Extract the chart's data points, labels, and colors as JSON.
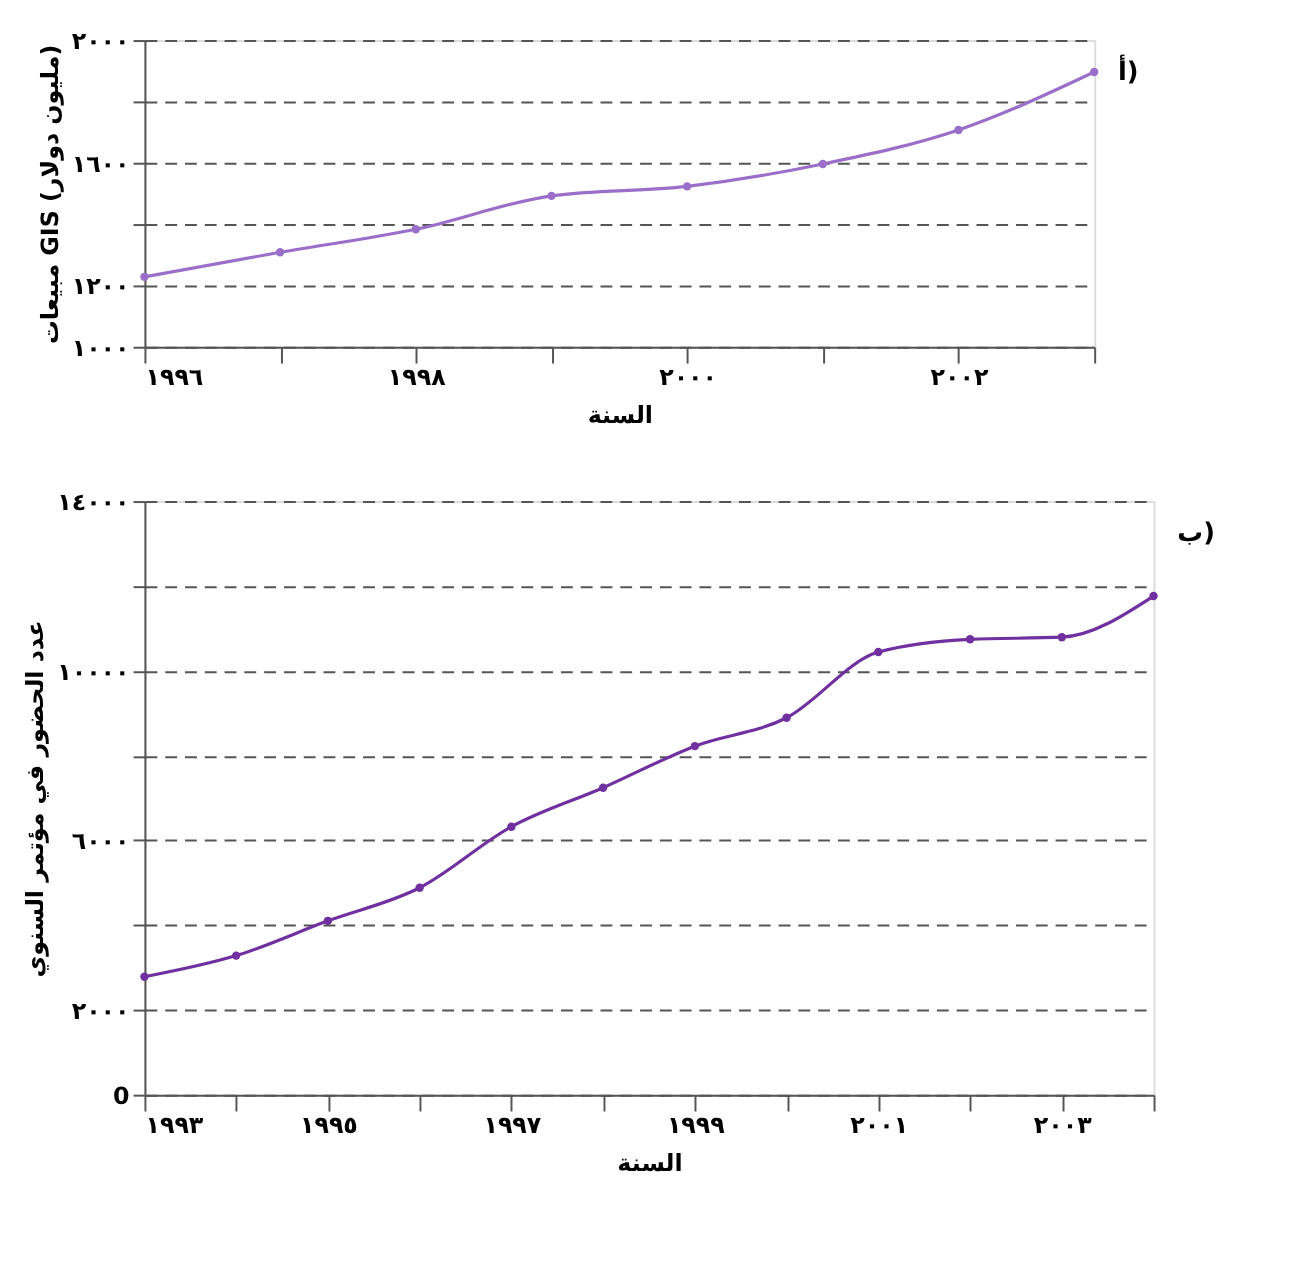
{
  "chart_data": [
    {
      "type": "line",
      "xlabel": "السنة",
      "ylabel": "مبيعات GIS (مليون دولار)",
      "annotations": [
        "أ)"
      ],
      "marker": "circle",
      "grid": "y",
      "x": [
        1996,
        1997,
        1998,
        1999,
        2000,
        2001,
        2002,
        2003
      ],
      "series": [
        {
          "color": "#9b6fc9",
          "values": [
            1228,
            1308,
            1383,
            1492,
            1523,
            1596,
            1707,
            1896
          ]
        }
      ],
      "xlim": [
        1996,
        2003
      ],
      "xticks": [
        {
          "value": 1996,
          "label": "١٩٩٦"
        },
        {
          "value": 1997,
          "label": null
        },
        {
          "value": 1998,
          "label": "١٩٩٨"
        },
        {
          "value": 1999,
          "label": null
        },
        {
          "value": 2000,
          "label": "٢٠٠٠"
        },
        {
          "value": 2001,
          "label": null
        },
        {
          "value": 2002,
          "label": "٢٠٠٢"
        },
        {
          "value": 2003,
          "label": null
        }
      ],
      "ylim": [
        1000,
        2000
      ],
      "yticks": [
        {
          "value": 1000,
          "label": "١٠٠٠"
        },
        {
          "value": 1200,
          "label": "١٢٠٠"
        },
        {
          "value": 1400,
          "label": null
        },
        {
          "value": 1600,
          "label": "١٦٠٠"
        },
        {
          "value": 1800,
          "label": null
        },
        {
          "value": 2000,
          "label": "٢٠٠٠"
        }
      ]
    },
    {
      "type": "line",
      "xlabel": "السنة",
      "ylabel": "عدد الحضور في مؤتمر السنوي",
      "annotations": [
        "ب)"
      ],
      "marker": "circle",
      "grid": "y",
      "x": [
        1993,
        1994,
        1995,
        1996,
        1997,
        1998,
        1999,
        2000,
        2001,
        2002,
        2003,
        2004
      ],
      "series": [
        {
          "color": "#7030a0",
          "values": [
            2780,
            3280,
            4100,
            4880,
            6320,
            7240,
            8220,
            8890,
            10440,
            10740,
            10790,
            11760
          ]
        }
      ],
      "xlim": [
        1993,
        2004
      ],
      "xticks": [
        {
          "value": 1993,
          "label": "١٩٩٣"
        },
        {
          "value": 1994,
          "label": null
        },
        {
          "value": 1995,
          "label": "١٩٩٥"
        },
        {
          "value": 1996,
          "label": null
        },
        {
          "value": 1997,
          "label": "١٩٩٧"
        },
        {
          "value": 1998,
          "label": null
        },
        {
          "value": 1999,
          "label": "١٩٩٩"
        },
        {
          "value": 2000,
          "label": null
        },
        {
          "value": 2001,
          "label": "٢٠٠١"
        },
        {
          "value": 2002,
          "label": null
        },
        {
          "value": 2003,
          "label": "٢٠٠٣"
        },
        {
          "value": 2004,
          "label": null
        }
      ],
      "ylim": [
        0,
        14000
      ],
      "yticks": [
        0,
        {
          "value": 2000,
          "label": "٢٠٠٠"
        },
        {
          "value": 4000,
          "label": null
        },
        {
          "value": 6000,
          "label": "٦٠٠٠"
        },
        {
          "value": 8000,
          "label": null
        },
        {
          "value": 10000,
          "label": "١٠٠٠٠"
        },
        {
          "value": 12000,
          "label": null
        },
        {
          "value": 14000,
          "label": "١٤٠٠٠"
        }
      ]
    }
  ]
}
